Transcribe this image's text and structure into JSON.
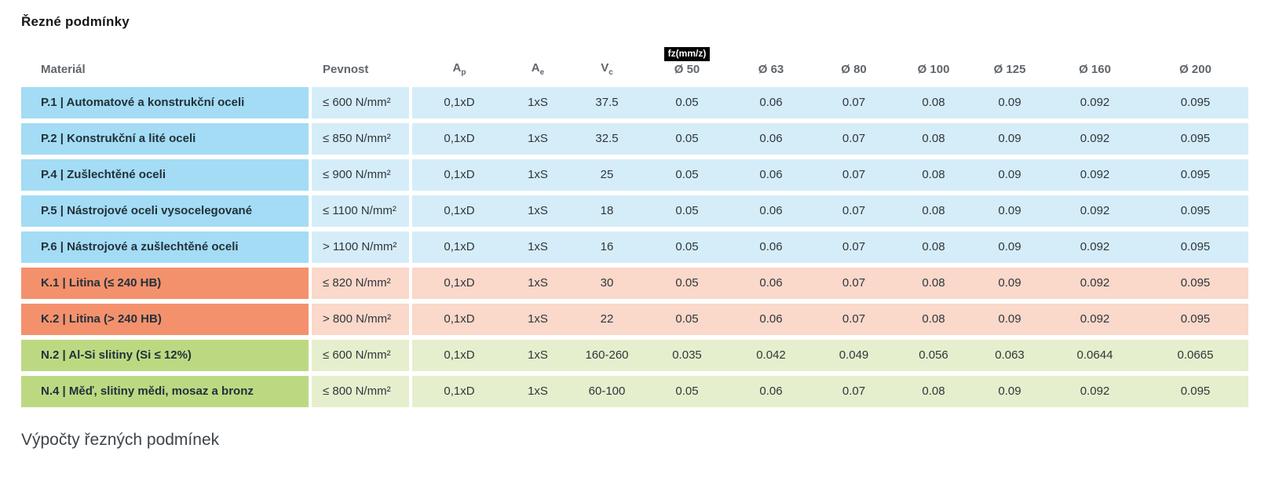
{
  "page": {
    "title": "Řezné podmínky",
    "section_heading": "Výpočty řezných podmínek"
  },
  "table": {
    "headers": {
      "material": "Materiál",
      "pevnost": "Pevnost",
      "ap_base": "A",
      "ap_sub": "p",
      "ae_base": "A",
      "ae_sub": "e",
      "vc_base": "V",
      "vc_sub": "c",
      "fz_badge": "fz(mm/z)",
      "diameters": [
        "Ø 50",
        "Ø 63",
        "Ø 80",
        "Ø 100",
        "Ø 125",
        "Ø 160",
        "Ø 200"
      ]
    },
    "colors": {
      "P": {
        "label": "#a3dcf4",
        "row": "#d5edf9"
      },
      "K": {
        "label": "#f4916d",
        "row": "#fad8ca"
      },
      "N": {
        "label": "#bcd982",
        "row": "#e5efcd"
      }
    },
    "rows": [
      {
        "group": "P",
        "material": "P.1 | Automatové a konstrukční oceli",
        "pevnost": "≤ 600 N/mm²",
        "ap": "0,1xD",
        "ae": "1xS",
        "vc": "37.5",
        "fz": [
          "0.05",
          "0.06",
          "0.07",
          "0.08",
          "0.09",
          "0.092",
          "0.095"
        ]
      },
      {
        "group": "P",
        "material": "P.2 | Konstrukční a lité oceli",
        "pevnost": "≤ 850 N/mm²",
        "ap": "0,1xD",
        "ae": "1xS",
        "vc": "32.5",
        "fz": [
          "0.05",
          "0.06",
          "0.07",
          "0.08",
          "0.09",
          "0.092",
          "0.095"
        ]
      },
      {
        "group": "P",
        "material": "P.4 | Zušlechtěné oceli",
        "pevnost": "≤ 900 N/mm²",
        "ap": "0,1xD",
        "ae": "1xS",
        "vc": "25",
        "fz": [
          "0.05",
          "0.06",
          "0.07",
          "0.08",
          "0.09",
          "0.092",
          "0.095"
        ]
      },
      {
        "group": "P",
        "material": "P.5 | Nástrojové oceli vysocelegované",
        "pevnost": "≤ 1100 N/mm²",
        "ap": "0,1xD",
        "ae": "1xS",
        "vc": "18",
        "fz": [
          "0.05",
          "0.06",
          "0.07",
          "0.08",
          "0.09",
          "0.092",
          "0.095"
        ]
      },
      {
        "group": "P",
        "material": "P.6 | Nástrojové a zušlechtěné oceli",
        "pevnost": "> 1100 N/mm²",
        "ap": "0,1xD",
        "ae": "1xS",
        "vc": "16",
        "fz": [
          "0.05",
          "0.06",
          "0.07",
          "0.08",
          "0.09",
          "0.092",
          "0.095"
        ]
      },
      {
        "group": "K",
        "material": "K.1 | Litina (≤ 240 HB)",
        "pevnost": "≤ 820 N/mm²",
        "ap": "0,1xD",
        "ae": "1xS",
        "vc": "30",
        "fz": [
          "0.05",
          "0.06",
          "0.07",
          "0.08",
          "0.09",
          "0.092",
          "0.095"
        ]
      },
      {
        "group": "K",
        "material": "K.2 | Litina (> 240 HB)",
        "pevnost": "> 800 N/mm²",
        "ap": "0,1xD",
        "ae": "1xS",
        "vc": "22",
        "fz": [
          "0.05",
          "0.06",
          "0.07",
          "0.08",
          "0.09",
          "0.092",
          "0.095"
        ]
      },
      {
        "group": "N",
        "material": "N.2 | Al-Si slitiny (Si ≤ 12%)",
        "pevnost": "≤ 600 N/mm²",
        "ap": "0,1xD",
        "ae": "1xS",
        "vc": "160-260",
        "fz": [
          "0.035",
          "0.042",
          "0.049",
          "0.056",
          "0.063",
          "0.0644",
          "0.0665"
        ]
      },
      {
        "group": "N",
        "material": "N.4 | Měď, slitiny mědi, mosaz a bronz",
        "pevnost": "≤ 800 N/mm²",
        "ap": "0,1xD",
        "ae": "1xS",
        "vc": "60-100",
        "fz": [
          "0.05",
          "0.06",
          "0.07",
          "0.08",
          "0.09",
          "0.092",
          "0.095"
        ]
      }
    ]
  }
}
